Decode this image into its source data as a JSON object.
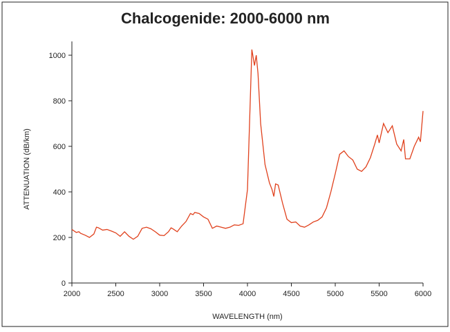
{
  "chart_data": {
    "type": "line",
    "title": "Chalcogenide: 2000-6000 nm",
    "x_label": "WAVELENGTH (nm)",
    "y_label": "ATTENUATION (dB/km)",
    "xlim": [
      2000,
      6000
    ],
    "xticks": [
      2000,
      2500,
      3000,
      3500,
      4000,
      4500,
      5000,
      5500,
      6000
    ],
    "ylim": [
      0,
      1000
    ],
    "yticks": [
      0,
      200,
      400,
      600,
      800,
      1000
    ],
    "x": [
      2000,
      2050,
      2080,
      2100,
      2150,
      2200,
      2250,
      2280,
      2300,
      2350,
      2400,
      2450,
      2500,
      2550,
      2600,
      2650,
      2700,
      2750,
      2800,
      2850,
      2900,
      2950,
      3000,
      3050,
      3100,
      3130,
      3150,
      3200,
      3250,
      3300,
      3350,
      3380,
      3400,
      3450,
      3500,
      3550,
      3600,
      3650,
      3700,
      3750,
      3800,
      3850,
      3900,
      3950,
      4000,
      4050,
      4080,
      4100,
      4120,
      4150,
      4200,
      4250,
      4280,
      4300,
      4320,
      4350,
      4400,
      4450,
      4500,
      4550,
      4600,
      4650,
      4700,
      4750,
      4800,
      4850,
      4900,
      4950,
      5000,
      5050,
      5100,
      5150,
      5200,
      5250,
      5300,
      5350,
      5400,
      5450,
      5480,
      5500,
      5550,
      5600,
      5650,
      5700,
      5750,
      5780,
      5800,
      5850,
      5900,
      5950,
      5970,
      6000
    ],
    "series": [
      {
        "name": "Chalcogenide",
        "color": "#e0401c",
        "values": [
          235,
          222,
          225,
          218,
          210,
          200,
          215,
          245,
          243,
          232,
          235,
          228,
          220,
          205,
          225,
          205,
          192,
          205,
          240,
          245,
          238,
          225,
          210,
          208,
          225,
          242,
          238,
          225,
          250,
          270,
          305,
          300,
          310,
          305,
          290,
          280,
          240,
          250,
          245,
          240,
          245,
          255,
          253,
          260,
          410,
          1025,
          955,
          1000,
          920,
          700,
          520,
          440,
          410,
          380,
          435,
          430,
          350,
          280,
          265,
          268,
          250,
          245,
          255,
          268,
          275,
          290,
          330,
          400,
          480,
          565,
          580,
          555,
          540,
          500,
          490,
          510,
          550,
          610,
          650,
          615,
          700,
          660,
          690,
          610,
          580,
          630,
          545,
          545,
          600,
          640,
          620,
          755
        ]
      }
    ]
  }
}
